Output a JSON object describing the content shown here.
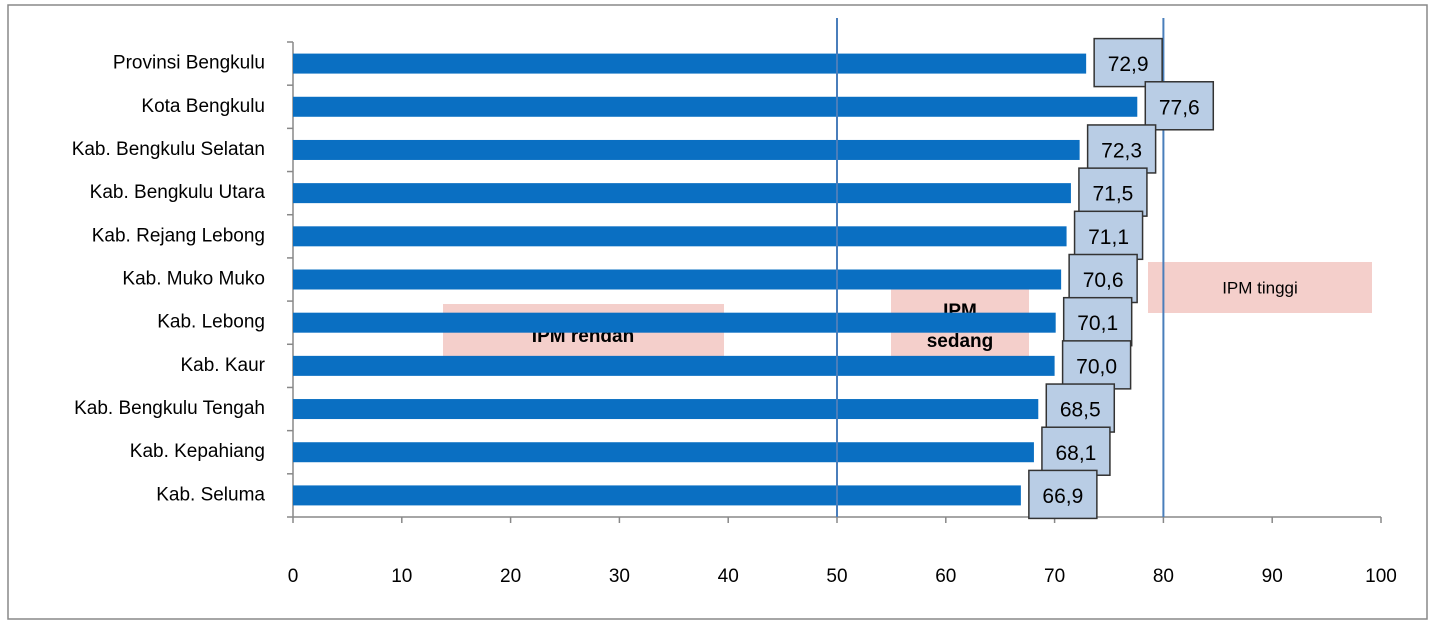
{
  "chart_data": {
    "type": "barh",
    "categories": [
      "Provinsi Bengkulu",
      "Kota Bengkulu",
      "Kab. Bengkulu Selatan",
      "Kab. Bengkulu Utara",
      "Kab. Rejang Lebong",
      "Kab. Muko Muko",
      "Kab. Lebong",
      "Kab. Kaur",
      "Kab. Bengkulu Tengah",
      "Kab. Kepahiang",
      "Kab. Seluma"
    ],
    "values": [
      72.9,
      77.6,
      72.3,
      71.5,
      71.1,
      70.6,
      70.1,
      70.0,
      68.5,
      68.1,
      66.9
    ],
    "value_labels": [
      "72,9",
      "77,6",
      "72,3",
      "71,5",
      "71,1",
      "70,6",
      "70,1",
      "70,0",
      "68,5",
      "68,1",
      "66,9"
    ],
    "color": "#0a6fc2",
    "xlim": [
      0,
      100
    ],
    "xticks": [
      0,
      10,
      20,
      30,
      40,
      50,
      60,
      70,
      80,
      90,
      100
    ],
    "reference_lines": [
      50,
      80
    ],
    "annotations": {
      "low": "IPM rendah",
      "mid": [
        "IPM",
        "sedang"
      ],
      "high": "IPM tinggi"
    }
  }
}
